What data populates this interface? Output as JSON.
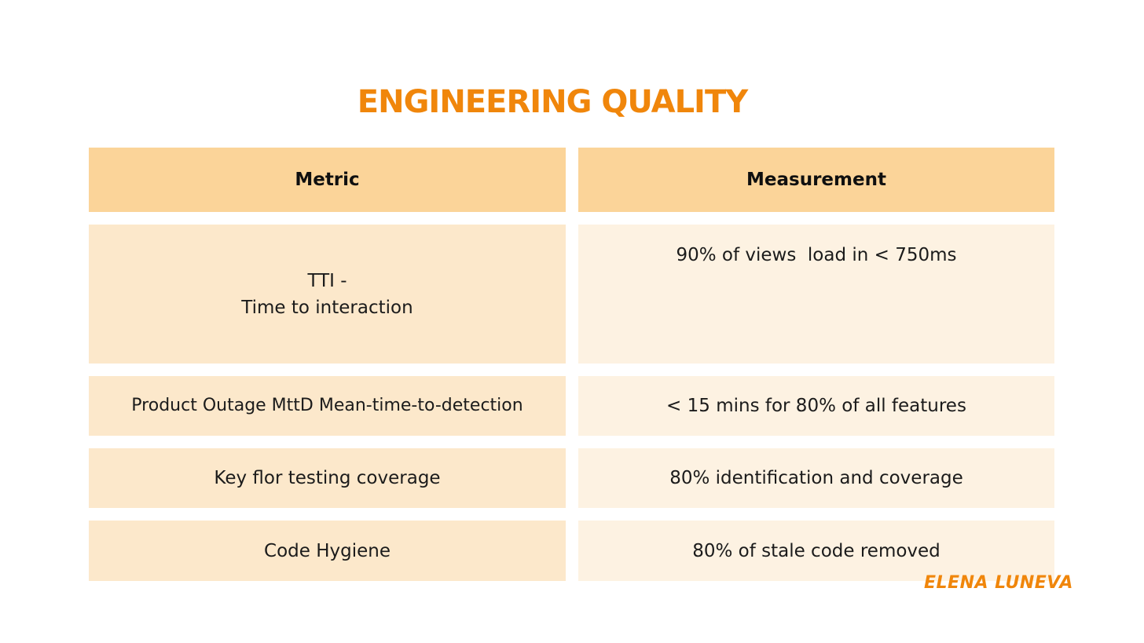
{
  "title": "ENGINEERING QUALITY",
  "table": {
    "headers": [
      "Metric",
      "Measurement"
    ],
    "rows": [
      {
        "metric_line1": "TTI -",
        "metric_line2": "Time to interaction",
        "measurement": "90% of views  load in < 750ms"
      },
      {
        "metric": "Product Outage MttD Mean-time-to-detection",
        "measurement": "< 15 mins for 80% of all features"
      },
      {
        "metric": "Key flor testing coverage",
        "measurement": "80% identification and coverage"
      },
      {
        "metric": "Code Hygiene",
        "measurement": "80% of stale code removed"
      }
    ]
  },
  "signature": "ELENA LUNEVA",
  "colors": {
    "accent": "#f0860b",
    "header_bg": "#fbd499",
    "left_cell_bg": "#fce8cb",
    "right_cell_bg": "#fdf2e2"
  }
}
